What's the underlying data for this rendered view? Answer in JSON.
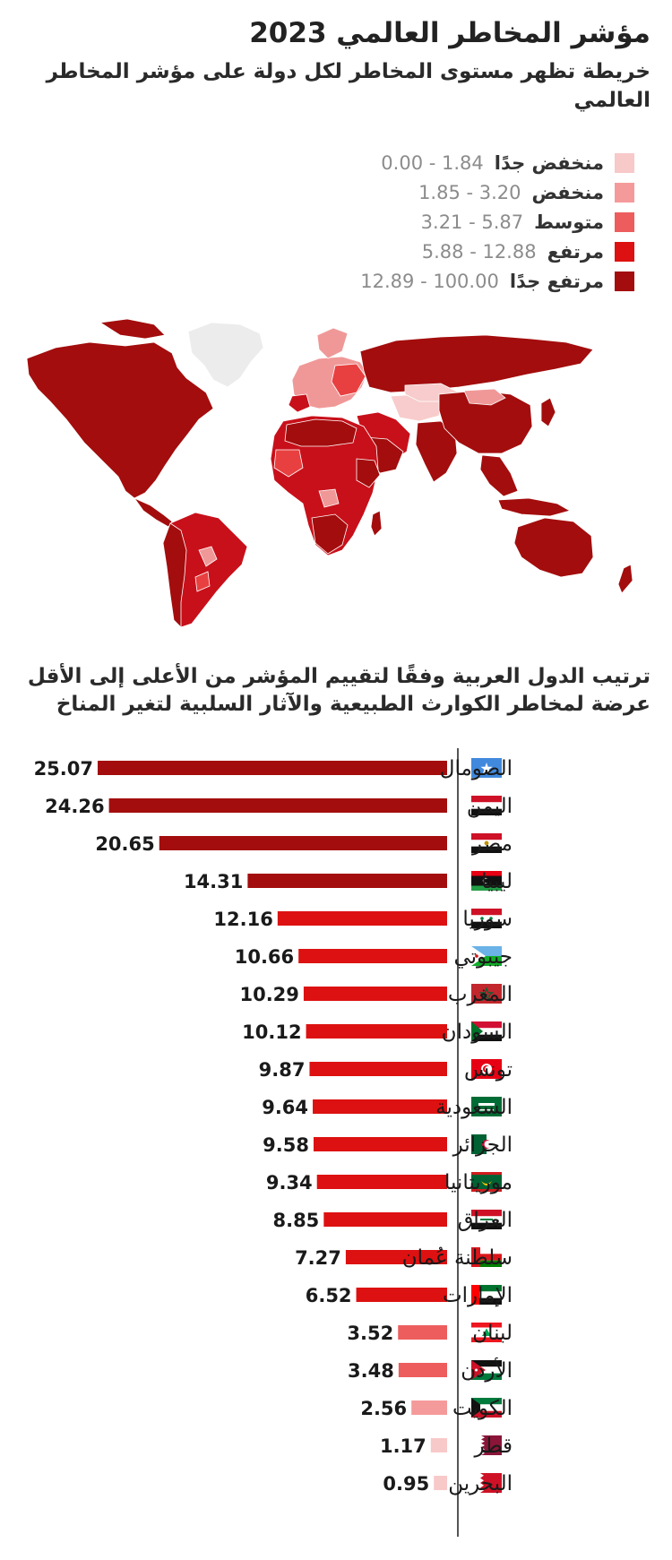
{
  "header": {
    "title": "مؤشر المخاطر العالمي 2023",
    "map_subtitle": "خريطة تظهر مستوى المخاطر لكل دولة على مؤشر المخاطر العالمي"
  },
  "legend": {
    "items": [
      {
        "label": "منخفض جدًا",
        "range": "0.00 - 1.84",
        "color": "#f8c9c9"
      },
      {
        "label": "منخفض",
        "range": "1.85 - 3.20",
        "color": "#f59a9a"
      },
      {
        "label": "متوسط",
        "range": "3.21 - 5.87",
        "color": "#ee5d5d"
      },
      {
        "label": "مرتفع",
        "range": "5.88 - 12.88",
        "color": "#dd1111"
      },
      {
        "label": "مرتفع جدًا",
        "range": "12.89 - 100.00",
        "color": "#a30d0d"
      }
    ]
  },
  "map": {
    "colors": {
      "very_high": "#a30d0d",
      "high": "#c8101a",
      "medium": "#e84040",
      "low": "#f09898",
      "very_low": "#f8cccc",
      "no_data": "#ececec"
    }
  },
  "chart_title": "ترتيب الدول العربية وفقًا لتقييم المؤشر من الأعلى إلى الأقل عرضة لمخاطر الكوارث الطبيعية والآثار السلبية لتغير المناخ",
  "chart_data": {
    "type": "bar",
    "orientation": "horizontal",
    "categories": [
      "الصومال",
      "اليمن",
      "مصر",
      "ليبيا",
      "سوريا",
      "جيبوتي",
      "المغرب",
      "السودان",
      "تونس",
      "السعودية",
      "الجزائر",
      "موريتانيا",
      "العراق",
      "سلطنة عُمان",
      "الإمارات",
      "لبنان",
      "الأردن",
      "الكويت",
      "قطر",
      "البحرين"
    ],
    "values": [
      25.07,
      24.26,
      20.65,
      14.31,
      12.16,
      10.66,
      10.29,
      10.12,
      9.87,
      9.64,
      9.58,
      9.34,
      8.85,
      7.27,
      6.52,
      3.52,
      3.48,
      2.56,
      1.17,
      0.95
    ],
    "data_labels": [
      "25.07",
      "24.26",
      "20.65",
      "14.31",
      "12.16",
      "10.66",
      "10.29",
      "10.12",
      "9.87",
      "9.64",
      "9.58",
      "9.34",
      "8.85",
      "7.27",
      "6.52",
      "3.52",
      "3.48",
      "2.56",
      "1.17",
      "0.95"
    ],
    "flags": [
      "somalia-flag-icon",
      "yemen-flag-icon",
      "egypt-flag-icon",
      "libya-flag-icon",
      "syria-flag-icon",
      "djibouti-flag-icon",
      "morocco-flag-icon",
      "sudan-flag-icon",
      "tunisia-flag-icon",
      "saudi-arabia-flag-icon",
      "algeria-flag-icon",
      "mauritania-flag-icon",
      "iraq-flag-icon",
      "oman-flag-icon",
      "uae-flag-icon",
      "lebanon-flag-icon",
      "jordan-flag-icon",
      "kuwait-flag-icon",
      "qatar-flag-icon",
      "bahrain-flag-icon"
    ],
    "xlim": [
      0,
      25.07
    ],
    "bar_direction": "right-to-left",
    "grid": false,
    "color_scale": [
      {
        "min": 0.0,
        "max": 1.84,
        "color": "#f8c9c9"
      },
      {
        "min": 1.85,
        "max": 3.2,
        "color": "#f59a9a"
      },
      {
        "min": 3.21,
        "max": 5.87,
        "color": "#ee5d5d"
      },
      {
        "min": 5.88,
        "max": 12.88,
        "color": "#dd1111"
      },
      {
        "min": 12.89,
        "max": 100.0,
        "color": "#a30d0d"
      }
    ]
  }
}
